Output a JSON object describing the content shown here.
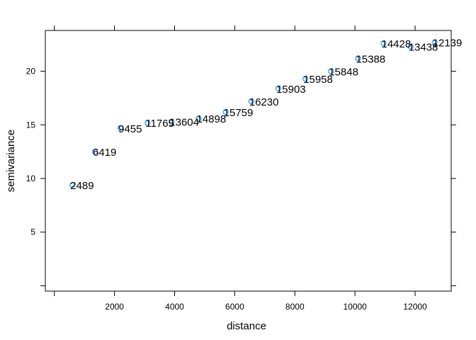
{
  "chart_data": {
    "type": "scatter",
    "xlabel": "distance",
    "ylabel": "semivariance",
    "xlim": [
      -300,
      13200
    ],
    "ylim": [
      -0.5,
      23.8
    ],
    "x_ticks": [
      2000,
      4000,
      6000,
      8000,
      10000,
      12000
    ],
    "y_ticks": [
      5,
      10,
      15,
      20
    ],
    "grid": false,
    "points": [
      {
        "x": 600,
        "y": 9.4,
        "label": "2489"
      },
      {
        "x": 1350,
        "y": 12.5,
        "label": "6419"
      },
      {
        "x": 2200,
        "y": 14.7,
        "label": "9455"
      },
      {
        "x": 3100,
        "y": 15.2,
        "label": "11765"
      },
      {
        "x": 3900,
        "y": 15.3,
        "label": "13604"
      },
      {
        "x": 4800,
        "y": 15.6,
        "label": "14898"
      },
      {
        "x": 5700,
        "y": 16.2,
        "label": "15759"
      },
      {
        "x": 6550,
        "y": 17.2,
        "label": "16230"
      },
      {
        "x": 7450,
        "y": 18.4,
        "label": "15903"
      },
      {
        "x": 8350,
        "y": 19.3,
        "label": "15958"
      },
      {
        "x": 9200,
        "y": 20.0,
        "label": "15848"
      },
      {
        "x": 10100,
        "y": 21.2,
        "label": "15388"
      },
      {
        "x": 10950,
        "y": 22.6,
        "label": "14428"
      },
      {
        "x": 11850,
        "y": 22.3,
        "label": "13438"
      },
      {
        "x": 12650,
        "y": 22.7,
        "label": "12139"
      }
    ]
  }
}
